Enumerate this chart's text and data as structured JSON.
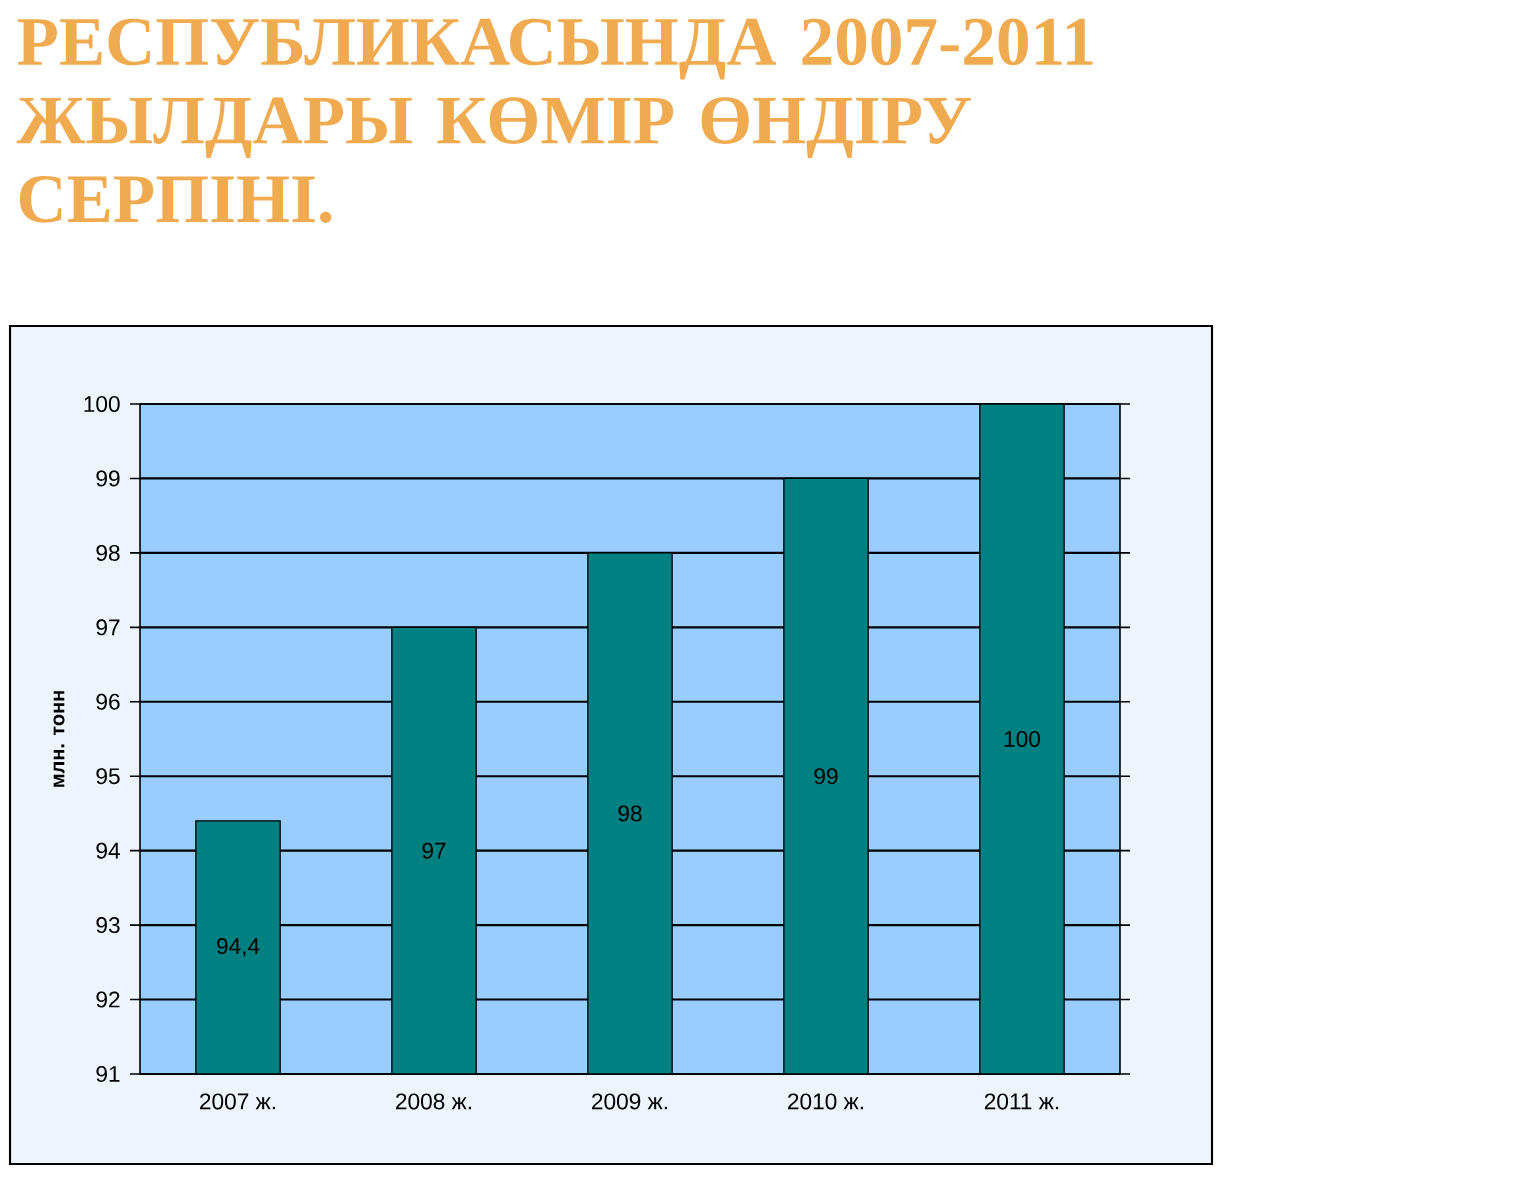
{
  "chart_data": {
    "type": "bar",
    "title": "РЕСПУБЛИКАСЫНДА 2007-2011 ЖЫЛДАРЫ КӨМІР ӨНДІРУ СЕРПІНІ.",
    "ylabel": "млн. тонн",
    "categories": [
      "2007 ж.",
      "2008 ж.",
      "2009 ж.",
      "2010 ж.",
      "2011 ж."
    ],
    "values": [
      94.4,
      97,
      98,
      99,
      100
    ],
    "value_labels": [
      "94,4",
      "97",
      "98",
      "99",
      "100"
    ],
    "color": "#008080",
    "ylim": [
      91,
      100
    ],
    "yticks": [
      91,
      92,
      93,
      94,
      95,
      96,
      97,
      98,
      99,
      100
    ],
    "grid": "y"
  }
}
